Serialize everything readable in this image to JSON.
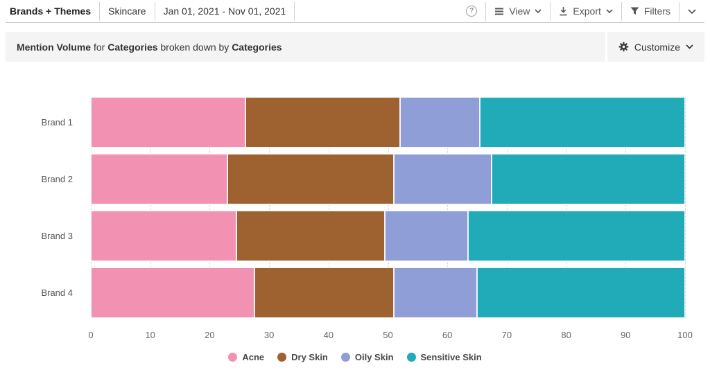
{
  "header": {
    "tabs": [
      {
        "label": "Brands + Themes"
      },
      {
        "label": "Skincare"
      },
      {
        "label": "Jan 01, 2021 - Nov 01, 2021"
      }
    ],
    "view_label": "View",
    "export_label": "Export",
    "filters_label": "Filters",
    "help_icon": "circled-question-mark",
    "help_glyph": "?"
  },
  "subheader": {
    "title": {
      "metric": "Mention Volume",
      "connector1": " for ",
      "group": "Categories",
      "connector2": " broken down by ",
      "breakdown": "Categories"
    },
    "customize_label": "Customize",
    "background": "#f4f4f4"
  },
  "chart_data": {
    "type": "bar",
    "orientation": "horizontal",
    "stacked": true,
    "title": "Mention Volume for Categories broken down by Categories",
    "categories": [
      "Brand 1",
      "Brand 2",
      "Brand 3",
      "Brand 4"
    ],
    "series": [
      {
        "name": "Acne",
        "color": "#F291B1",
        "values": [
          26,
          23,
          24.5,
          27.5
        ]
      },
      {
        "name": "Dry Skin",
        "color": "#9E6231",
        "values": [
          26,
          28,
          25,
          23.5
        ]
      },
      {
        "name": "Oily Skin",
        "color": "#8F9ED7",
        "values": [
          13.5,
          16.5,
          14,
          14
        ]
      },
      {
        "name": "Sensitive Skin",
        "color": "#21AAB8",
        "values": [
          34.5,
          32.5,
          36.5,
          35
        ]
      }
    ],
    "xlabel": "",
    "ylabel": "",
    "xlim": [
      0,
      100
    ],
    "x_ticks": [
      0,
      10,
      20,
      30,
      40,
      50,
      60,
      70,
      80,
      90,
      100
    ],
    "grid": "vertical-dotted",
    "legend_position": "bottom"
  }
}
